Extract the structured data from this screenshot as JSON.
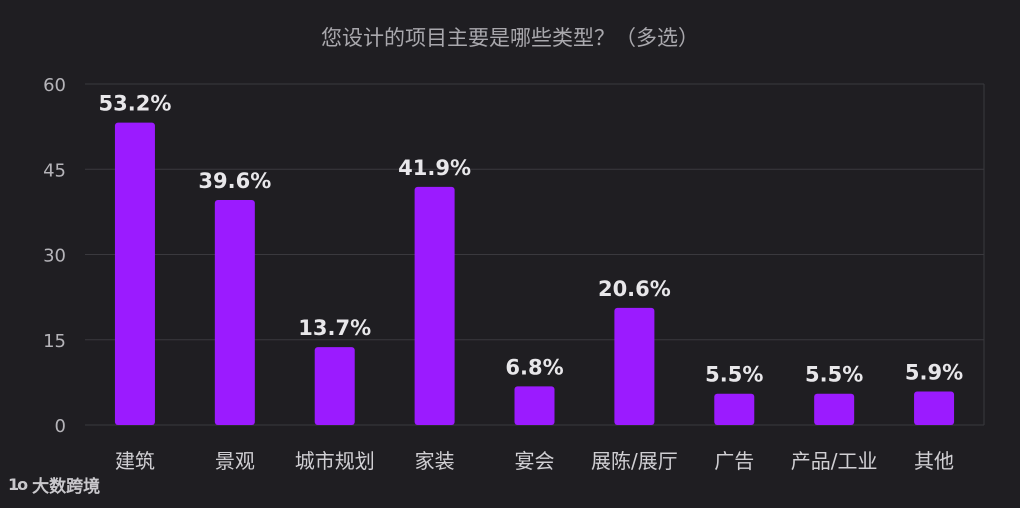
{
  "chart_data": {
    "type": "bar",
    "title": "您设计的项目主要是哪些类型？（多选）",
    "categories": [
      "建筑",
      "景观",
      "城市规划",
      "家装",
      "宴会",
      "展陈/展厅",
      "广告",
      "产品/工业",
      "其他"
    ],
    "values": [
      53.2,
      39.6,
      13.7,
      41.9,
      6.8,
      20.6,
      5.5,
      5.5,
      5.9
    ],
    "data_labels": [
      "53.2%",
      "39.6%",
      "13.7%",
      "41.9%",
      "6.8%",
      "20.6%",
      "5.5%",
      "5.5%",
      "5.9%"
    ],
    "yticks": [
      "0",
      "15",
      "30",
      "45",
      "60"
    ],
    "ylim": [
      0,
      60
    ],
    "grid": true,
    "bar_color": "#9b1bff",
    "axis_text_color": "#b5b4b9",
    "label_color": "#e8e7ea"
  },
  "watermark": {
    "logo_text": "1o",
    "text": "大数跨境"
  }
}
